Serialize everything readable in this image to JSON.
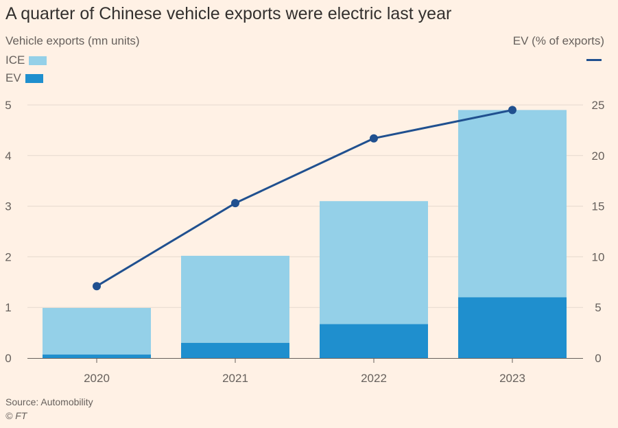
{
  "title": "A quarter of Chinese vehicle exports were electric last year",
  "source": "Source: Automobility",
  "credit": "© FT",
  "colors": {
    "ice": "#94d0e8",
    "ev": "#1f8fce",
    "line": "#20508f",
    "grid": "#e6d9ce",
    "axis": "#66605c"
  },
  "chart_data": {
    "type": "bar",
    "categories": [
      "2020",
      "2021",
      "2022",
      "2023"
    ],
    "series": [
      {
        "name": "ICE",
        "values": [
          0.92,
          1.72,
          2.43,
          3.7
        ],
        "axis": "left",
        "stacked": true
      },
      {
        "name": "EV",
        "values": [
          0.07,
          0.3,
          0.67,
          1.2
        ],
        "axis": "left",
        "stacked": true
      },
      {
        "name": "EV (% of exports)",
        "values": [
          7.1,
          15.3,
          21.7,
          24.5
        ],
        "axis": "right",
        "type": "line"
      }
    ],
    "ylabel_left": "Vehicle exports (mn units)",
    "ylabel_right": "EV (% of exports)",
    "ylim_left": [
      0,
      5
    ],
    "ylim_right": [
      0,
      25
    ],
    "yticks_left": [
      "0",
      "1",
      "2",
      "3",
      "4",
      "5"
    ],
    "yticks_right": [
      "0",
      "5",
      "10",
      "15",
      "20",
      "25"
    ],
    "grid": true,
    "legend": "top-left"
  }
}
